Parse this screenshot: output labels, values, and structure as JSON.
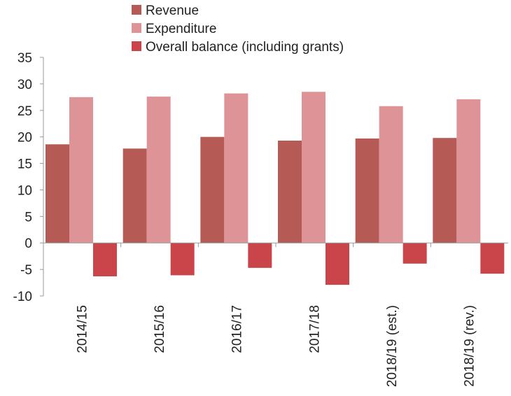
{
  "chart_data": {
    "type": "bar",
    "categories": [
      "2014/15",
      "2015/16",
      "2016/17",
      "2017/18",
      "2018/19 (est.)",
      "2018/19 (rev.)"
    ],
    "series": [
      {
        "name": "Revenue",
        "color": "#b55a55",
        "values": [
          18.6,
          17.8,
          20.0,
          19.3,
          19.7,
          19.8
        ]
      },
      {
        "name": "Expenditure",
        "color": "#de9497",
        "values": [
          27.5,
          27.6,
          28.2,
          28.5,
          25.8,
          27.1
        ]
      },
      {
        "name": "Overall balance (including grants)",
        "color": "#c9454a",
        "values": [
          -6.3,
          -6.1,
          -4.7,
          -7.9,
          -3.9,
          -5.8
        ]
      }
    ],
    "title": "",
    "xlabel": "",
    "ylabel": "",
    "ylim": [
      -10,
      35
    ],
    "yticks": [
      -10,
      -5,
      0,
      5,
      10,
      15,
      20,
      25,
      30,
      35
    ],
    "grid": false,
    "legend_position": "top"
  }
}
